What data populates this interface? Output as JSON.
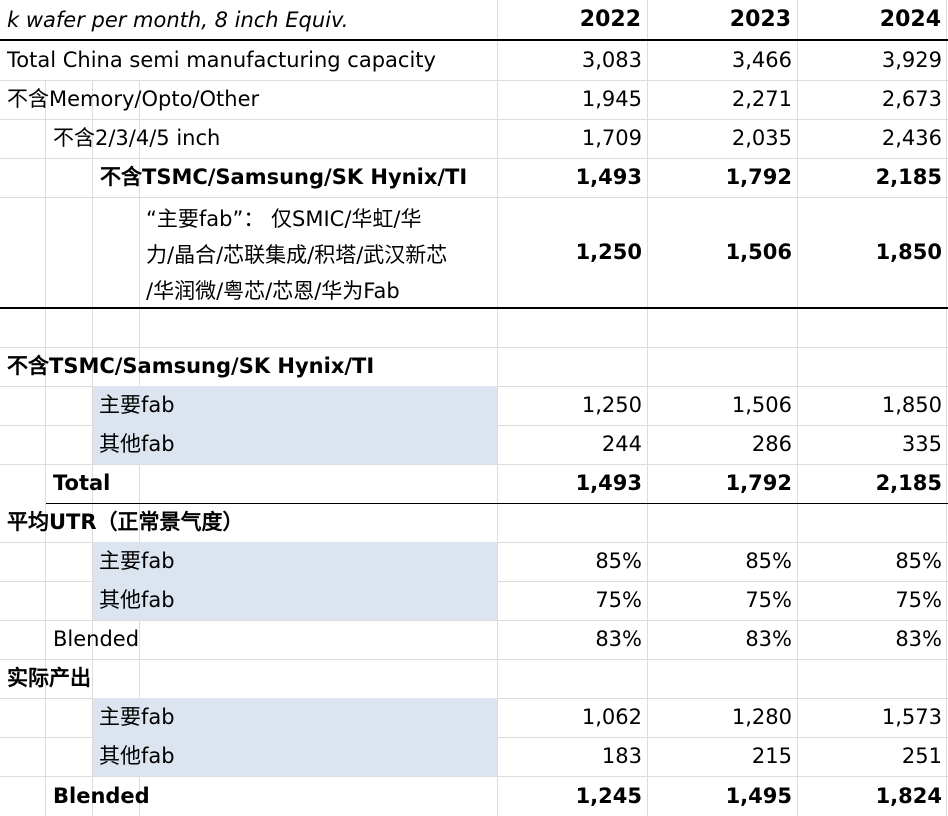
{
  "header": {
    "unit_label": "k wafer per month, 8 inch Equiv.",
    "years": [
      "2022",
      "2023",
      "2024"
    ]
  },
  "capacity_rows": [
    {
      "label": "Total China semi manufacturing capacity",
      "values": [
        "3,083",
        "3,466",
        "3,929"
      ]
    },
    {
      "label": "不含Memory/Opto/Other",
      "values": [
        "1,945",
        "2,271",
        "2,673"
      ]
    },
    {
      "label": "不含2/3/4/5 inch",
      "values": [
        "1,709",
        "2,035",
        "2,436"
      ]
    },
    {
      "label": "不含TSMC/Samsung/SK Hynix/TI",
      "values": [
        "1,493",
        "1,792",
        "2,185"
      ]
    },
    {
      "label_lines": [
        "“主要fab”： 仅SMIC/华虹/华",
        "力/晶合/芯联集成/积塔/武汉新芯",
        "/华润微/粤芯/芯恩/华为Fab"
      ],
      "values": [
        "1,250",
        "1,506",
        "1,850"
      ]
    }
  ],
  "section_split": {
    "title": "不含TSMC/Samsung/SK Hynix/TI",
    "rows": [
      {
        "label": "主要fab",
        "values": [
          "1,250",
          "1,506",
          "1,850"
        ]
      },
      {
        "label": "其他fab",
        "values": [
          "244",
          "286",
          "335"
        ]
      }
    ],
    "total": {
      "label": "Total",
      "values": [
        "1,493",
        "1,792",
        "2,185"
      ]
    }
  },
  "section_utr": {
    "title": "平均UTR（正常景气度）",
    "rows": [
      {
        "label": "主要fab",
        "values": [
          "85%",
          "85%",
          "85%"
        ]
      },
      {
        "label": "其他fab",
        "values": [
          "75%",
          "75%",
          "75%"
        ]
      }
    ],
    "total": {
      "label": "Blended",
      "values": [
        "83%",
        "83%",
        "83%"
      ]
    }
  },
  "section_output": {
    "title": "实际产出",
    "rows": [
      {
        "label": "主要fab",
        "values": [
          "1,062",
          "1,280",
          "1,573"
        ]
      },
      {
        "label": "其他fab",
        "values": [
          "183",
          "215",
          "251"
        ]
      }
    ],
    "total": {
      "label": "Blended",
      "values": [
        "1,245",
        "1,495",
        "1,824"
      ]
    }
  }
}
